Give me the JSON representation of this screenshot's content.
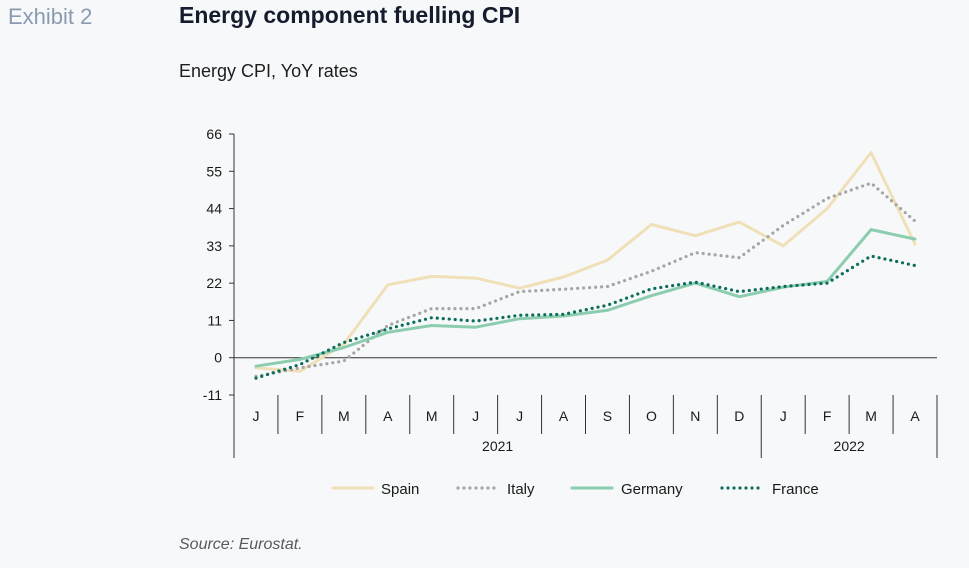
{
  "header": {
    "exhibit": "Exhibit 2",
    "title": "Energy component fuelling CPI",
    "subtitle": "Energy CPI, YoY rates"
  },
  "footer": {
    "source": "Source: Eurostat."
  },
  "chart_data": {
    "type": "line",
    "title": "Energy component fuelling CPI",
    "subtitle": "Energy CPI, YoY rates",
    "xlabel": "",
    "ylabel": "",
    "ylim": [
      -11,
      66
    ],
    "yticks": [
      66,
      55,
      44,
      33,
      22,
      11,
      0,
      -11
    ],
    "categories": [
      "J",
      "F",
      "M",
      "A",
      "M",
      "J",
      "J",
      "A",
      "S",
      "O",
      "N",
      "D",
      "J",
      "F",
      "M",
      "A"
    ],
    "year_groups": [
      {
        "label": "2021",
        "count": 12
      },
      {
        "label": "2022",
        "count": 4
      }
    ],
    "grid": false,
    "legend_position": "bottom",
    "series": [
      {
        "name": "Spain",
        "color": "#efe0b8",
        "style": "solid",
        "values": [
          -3,
          -4,
          4,
          21.5,
          24,
          23.5,
          20.5,
          23.8,
          28.8,
          39.3,
          36,
          40,
          33,
          44,
          60.5,
          33.5
        ]
      },
      {
        "name": "Italy",
        "color": "#a5a5a5",
        "style": "dotted",
        "values": [
          -5.5,
          -3,
          -1,
          9.5,
          14.5,
          14.5,
          19.5,
          20.2,
          21,
          25.5,
          31,
          29.5,
          39,
          47,
          51.5,
          40.3
        ]
      },
      {
        "name": "Germany",
        "color": "#8ccdb0",
        "style": "solid",
        "values": [
          -2.5,
          -0.5,
          3,
          7.5,
          9.5,
          9,
          11.5,
          12.3,
          14,
          18.3,
          22,
          18,
          20.8,
          22.5,
          37.8,
          35
        ]
      },
      {
        "name": "France",
        "color": "#0d6d5b",
        "style": "dotted",
        "values": [
          -6,
          -2,
          4.5,
          8.5,
          11.8,
          10.8,
          12.5,
          12.8,
          15.5,
          20.3,
          22.3,
          19.5,
          21,
          22,
          30,
          27.2
        ]
      }
    ]
  }
}
